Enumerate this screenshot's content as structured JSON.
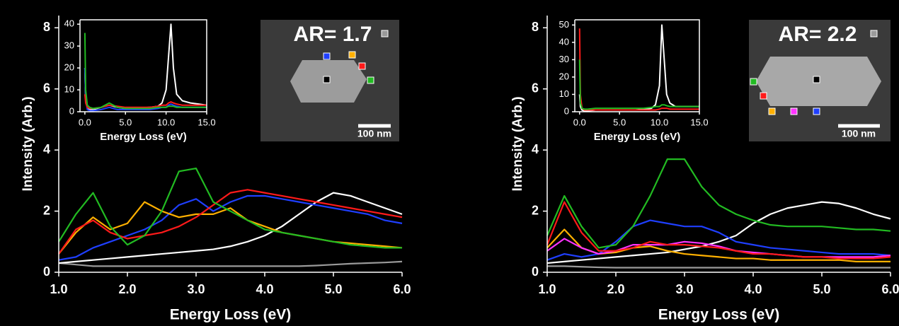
{
  "chart_data": [
    {
      "type": "line",
      "xlabel": "Energy Loss (eV)",
      "ylabel": "Intensity (Arb.)",
      "annotations": [
        "AR= 1.7",
        "100 nm"
      ],
      "x": [
        1,
        1.25,
        1.5,
        1.75,
        2,
        2.25,
        2.5,
        2.75,
        3,
        3.25,
        3.5,
        3.75,
        4,
        4.25,
        4.5,
        4.75,
        5,
        5.25,
        5.5,
        5.75,
        6
      ],
      "xlim": [
        1,
        6
      ],
      "ylim": [
        0,
        8.4
      ],
      "xticks": [
        {
          "value": 1,
          "label": "1.0"
        },
        {
          "value": 2,
          "label": "2.0"
        },
        {
          "value": 3,
          "label": "3.0"
        },
        {
          "value": 4,
          "label": "4.0"
        },
        {
          "value": 5,
          "label": "5.0"
        },
        {
          "value": 6,
          "label": "6.0"
        }
      ],
      "yticks": [
        0,
        2,
        4,
        6,
        8
      ],
      "series": [
        {
          "color": "#9a9a9a",
          "values": [
            0.3,
            0.25,
            0.2,
            0.2,
            0.2,
            0.2,
            0.2,
            0.2,
            0.2,
            0.2,
            0.2,
            0.2,
            0.2,
            0.2,
            0.2,
            0.22,
            0.25,
            0.28,
            0.3,
            0.32,
            0.35
          ]
        },
        {
          "color": "#ffffff",
          "values": [
            0.3,
            0.35,
            0.4,
            0.45,
            0.5,
            0.55,
            0.6,
            0.65,
            0.7,
            0.75,
            0.85,
            1.0,
            1.2,
            1.5,
            1.9,
            2.3,
            2.6,
            2.5,
            2.3,
            2.1,
            1.9
          ]
        },
        {
          "color": "#1f3fff",
          "values": [
            0.4,
            0.5,
            0.8,
            1.0,
            1.2,
            1.4,
            1.7,
            2.2,
            2.4,
            2.0,
            2.3,
            2.5,
            2.5,
            2.4,
            2.3,
            2.2,
            2.1,
            2.0,
            1.9,
            1.7,
            1.6
          ]
        },
        {
          "color": "#ffb000",
          "values": [
            0.6,
            1.3,
            1.8,
            1.4,
            1.6,
            2.3,
            2.0,
            1.8,
            1.9,
            1.9,
            2.1,
            1.7,
            1.5,
            1.3,
            1.2,
            1.1,
            1.0,
            0.95,
            0.9,
            0.85,
            0.8
          ]
        },
        {
          "color": "#ff1a1a",
          "values": [
            0.6,
            1.4,
            1.7,
            1.3,
            1.1,
            1.2,
            1.3,
            1.5,
            1.8,
            2.2,
            2.6,
            2.7,
            2.6,
            2.5,
            2.4,
            2.3,
            2.2,
            2.1,
            2.0,
            1.9,
            1.8
          ]
        },
        {
          "color": "#22bb22",
          "values": [
            1.0,
            1.9,
            2.6,
            1.5,
            0.9,
            1.2,
            2.0,
            3.3,
            3.4,
            2.3,
            2.0,
            1.7,
            1.4,
            1.3,
            1.2,
            1.1,
            1.0,
            0.9,
            0.85,
            0.8,
            0.8
          ]
        }
      ]
    },
    {
      "type": "line",
      "xlabel": "Energy Loss (eV)",
      "x": [
        0,
        0.1,
        0.3,
        0.6,
        1,
        2,
        3,
        4,
        5,
        6,
        7,
        8,
        9,
        9.5,
        10,
        10.3,
        10.6,
        10.9,
        11.3,
        12,
        13,
        14,
        15
      ],
      "xlim": [
        -0.6,
        15
      ],
      "ylim": [
        0,
        42
      ],
      "xticks": [
        {
          "value": 0,
          "label": "0.0"
        },
        {
          "value": 5,
          "label": "5.0"
        },
        {
          "value": 10,
          "label": "10.0"
        },
        {
          "value": 15,
          "label": "15.0"
        }
      ],
      "yticks": [
        0,
        10,
        20,
        30,
        40
      ],
      "series": [
        {
          "color": "#ffffff",
          "values": [
            20,
            5,
            2,
            1,
            1,
            2,
            3,
            2,
            1.5,
            1.5,
            1.8,
            2,
            2.5,
            4,
            10,
            25,
            40,
            20,
            8,
            5,
            4,
            3.5,
            3
          ]
        },
        {
          "color": "#1f3fff",
          "values": [
            20,
            6,
            1,
            0.5,
            0.5,
            1,
            2,
            1,
            1,
            1,
            1,
            1,
            1.5,
            2,
            2,
            3,
            3.5,
            3,
            2.5,
            2,
            2,
            2,
            2
          ]
        },
        {
          "color": "#ff1a1a",
          "values": [
            8,
            4,
            2,
            1.5,
            1.5,
            2,
            3,
            2.5,
            2,
            2,
            2,
            2,
            2.5,
            3,
            3,
            4,
            4.5,
            4,
            3.5,
            3,
            3,
            3,
            3
          ]
        },
        {
          "color": "#22bb22",
          "values": [
            36,
            10,
            3,
            2,
            1.5,
            2,
            4,
            2,
            1.5,
            1.5,
            1.5,
            1.5,
            2,
            2,
            2,
            2.5,
            2.5,
            2.5,
            2,
            2,
            2,
            2,
            2
          ]
        }
      ]
    },
    {
      "type": "line",
      "xlabel": "Energy Loss (eV)",
      "ylabel": "Intensity (Arb.)",
      "annotations": [
        "AR= 2.2",
        "100 nm"
      ],
      "x": [
        1,
        1.25,
        1.5,
        1.75,
        2,
        2.25,
        2.5,
        2.75,
        3,
        3.25,
        3.5,
        3.75,
        4,
        4.25,
        4.5,
        4.75,
        5,
        5.25,
        5.5,
        5.75,
        6
      ],
      "xlim": [
        1,
        6
      ],
      "ylim": [
        0,
        8.4
      ],
      "xticks": [
        {
          "value": 1,
          "label": "1.0"
        },
        {
          "value": 2,
          "label": "2.0"
        },
        {
          "value": 3,
          "label": "3.0"
        },
        {
          "value": 4,
          "label": "4.0"
        },
        {
          "value": 5,
          "label": "5.0"
        },
        {
          "value": 6,
          "label": "6.0"
        }
      ],
      "yticks": [
        0,
        2,
        4,
        6,
        8
      ],
      "series": [
        {
          "color": "#9a9a9a",
          "values": [
            0.2,
            0.2,
            0.18,
            0.16,
            0.15,
            0.15,
            0.15,
            0.15,
            0.15,
            0.15,
            0.15,
            0.15,
            0.15,
            0.15,
            0.15,
            0.15,
            0.15,
            0.15,
            0.15,
            0.15,
            0.15
          ]
        },
        {
          "color": "#ffffff",
          "values": [
            0.3,
            0.35,
            0.4,
            0.45,
            0.5,
            0.55,
            0.6,
            0.65,
            0.75,
            0.85,
            1.0,
            1.2,
            1.6,
            1.9,
            2.1,
            2.2,
            2.3,
            2.25,
            2.1,
            1.9,
            1.75
          ]
        },
        {
          "color": "#1f3fff",
          "values": [
            0.4,
            0.6,
            0.5,
            0.6,
            1.0,
            1.5,
            1.7,
            1.6,
            1.5,
            1.5,
            1.3,
            1.0,
            0.9,
            0.8,
            0.75,
            0.7,
            0.65,
            0.6,
            0.6,
            0.6,
            0.55
          ]
        },
        {
          "color": "#ffb000",
          "values": [
            0.8,
            1.4,
            0.8,
            0.6,
            0.65,
            0.8,
            0.85,
            0.7,
            0.6,
            0.55,
            0.5,
            0.45,
            0.45,
            0.4,
            0.4,
            0.4,
            0.4,
            0.4,
            0.35,
            0.35,
            0.35
          ]
        },
        {
          "color": "#ff33ff",
          "values": [
            0.7,
            1.1,
            0.8,
            0.6,
            0.7,
            0.9,
            0.9,
            0.9,
            1.0,
            0.95,
            0.85,
            0.7,
            0.65,
            0.6,
            0.55,
            0.5,
            0.5,
            0.5,
            0.5,
            0.5,
            0.55
          ]
        },
        {
          "color": "#ff1a1a",
          "values": [
            0.9,
            2.3,
            1.3,
            0.7,
            0.7,
            0.8,
            1.0,
            0.9,
            0.9,
            0.85,
            0.8,
            0.7,
            0.6,
            0.6,
            0.55,
            0.5,
            0.5,
            0.45,
            0.45,
            0.45,
            0.5
          ]
        },
        {
          "color": "#22bb22",
          "values": [
            1.2,
            2.5,
            1.5,
            0.8,
            0.9,
            1.5,
            2.5,
            3.7,
            3.7,
            2.8,
            2.2,
            1.9,
            1.7,
            1.55,
            1.5,
            1.5,
            1.5,
            1.45,
            1.4,
            1.4,
            1.35
          ]
        }
      ]
    },
    {
      "type": "line",
      "xlabel": "Energy Loss (eV)",
      "x": [
        0,
        0.1,
        0.3,
        0.6,
        1,
        2,
        3,
        4,
        5,
        6,
        7,
        8,
        9,
        9.5,
        10,
        10.3,
        10.6,
        10.9,
        11.3,
        12,
        13,
        14,
        15
      ],
      "xlim": [
        -0.6,
        15
      ],
      "ylim": [
        0,
        53
      ],
      "xticks": [
        {
          "value": 0,
          "label": "0.0"
        },
        {
          "value": 5,
          "label": "5.0"
        },
        {
          "value": 10,
          "label": "10.0"
        },
        {
          "value": 15,
          "label": "15.0"
        }
      ],
      "yticks": [
        0,
        10,
        20,
        30,
        40,
        50
      ],
      "series": [
        {
          "color": "#ffffff",
          "values": [
            10,
            3,
            1,
            0.5,
            0.5,
            1,
            1,
            1,
            1,
            1,
            1,
            1.5,
            2,
            4,
            15,
            50,
            30,
            10,
            5,
            3,
            3,
            3,
            3
          ]
        },
        {
          "color": "#ff1a1a",
          "values": [
            48,
            10,
            2,
            1,
            1,
            1,
            1,
            1,
            1,
            1,
            1,
            1,
            1,
            1,
            1.5,
            2,
            2,
            2,
            1.5,
            1.5,
            1.5,
            1.5,
            1.5
          ]
        },
        {
          "color": "#22bb22",
          "values": [
            30,
            5,
            2,
            1.5,
            1.5,
            2,
            2,
            2,
            2,
            2,
            2,
            2,
            2.5,
            3,
            3,
            4,
            4,
            3.5,
            3,
            3,
            3,
            3,
            3
          ]
        }
      ]
    }
  ]
}
